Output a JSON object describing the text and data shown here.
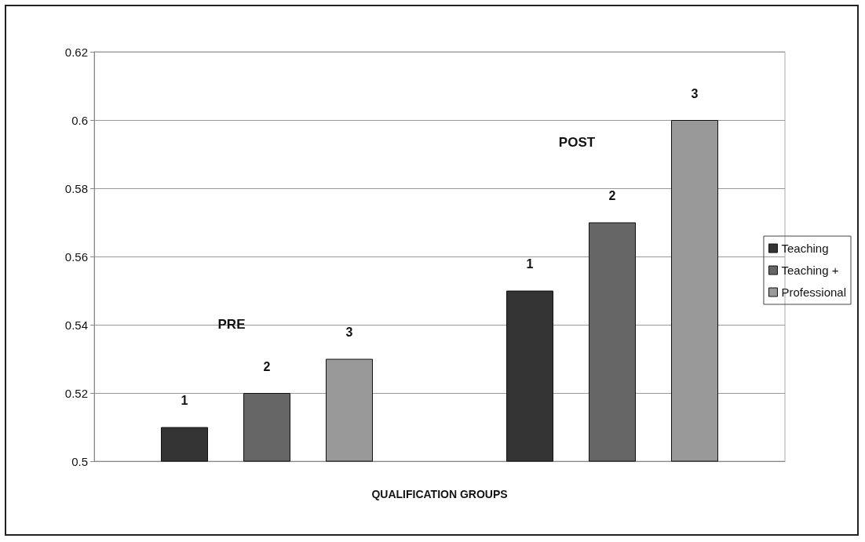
{
  "chart_data": {
    "type": "bar",
    "xlabel": "QUALIFICATION GROUPS",
    "categories": [
      null,
      null
    ],
    "series": [
      {
        "name": "Teaching",
        "color": "#333333",
        "values": [
          0.51,
          0.55
        ]
      },
      {
        "name": "Teaching +",
        "color": "#666666",
        "values": [
          0.52,
          0.57
        ]
      },
      {
        "name": "Professional",
        "color": "#999999",
        "values": [
          0.53,
          0.6
        ]
      }
    ],
    "annotations": [
      "PRE",
      "POST",
      "1",
      "1",
      "2",
      "2",
      "3",
      "3"
    ],
    "ylim": [
      0.5,
      0.62
    ],
    "yticks": [
      0.5,
      0.52,
      0.54,
      0.56,
      0.58,
      0.6,
      0.62
    ],
    "grid": "y",
    "legend": "right"
  }
}
